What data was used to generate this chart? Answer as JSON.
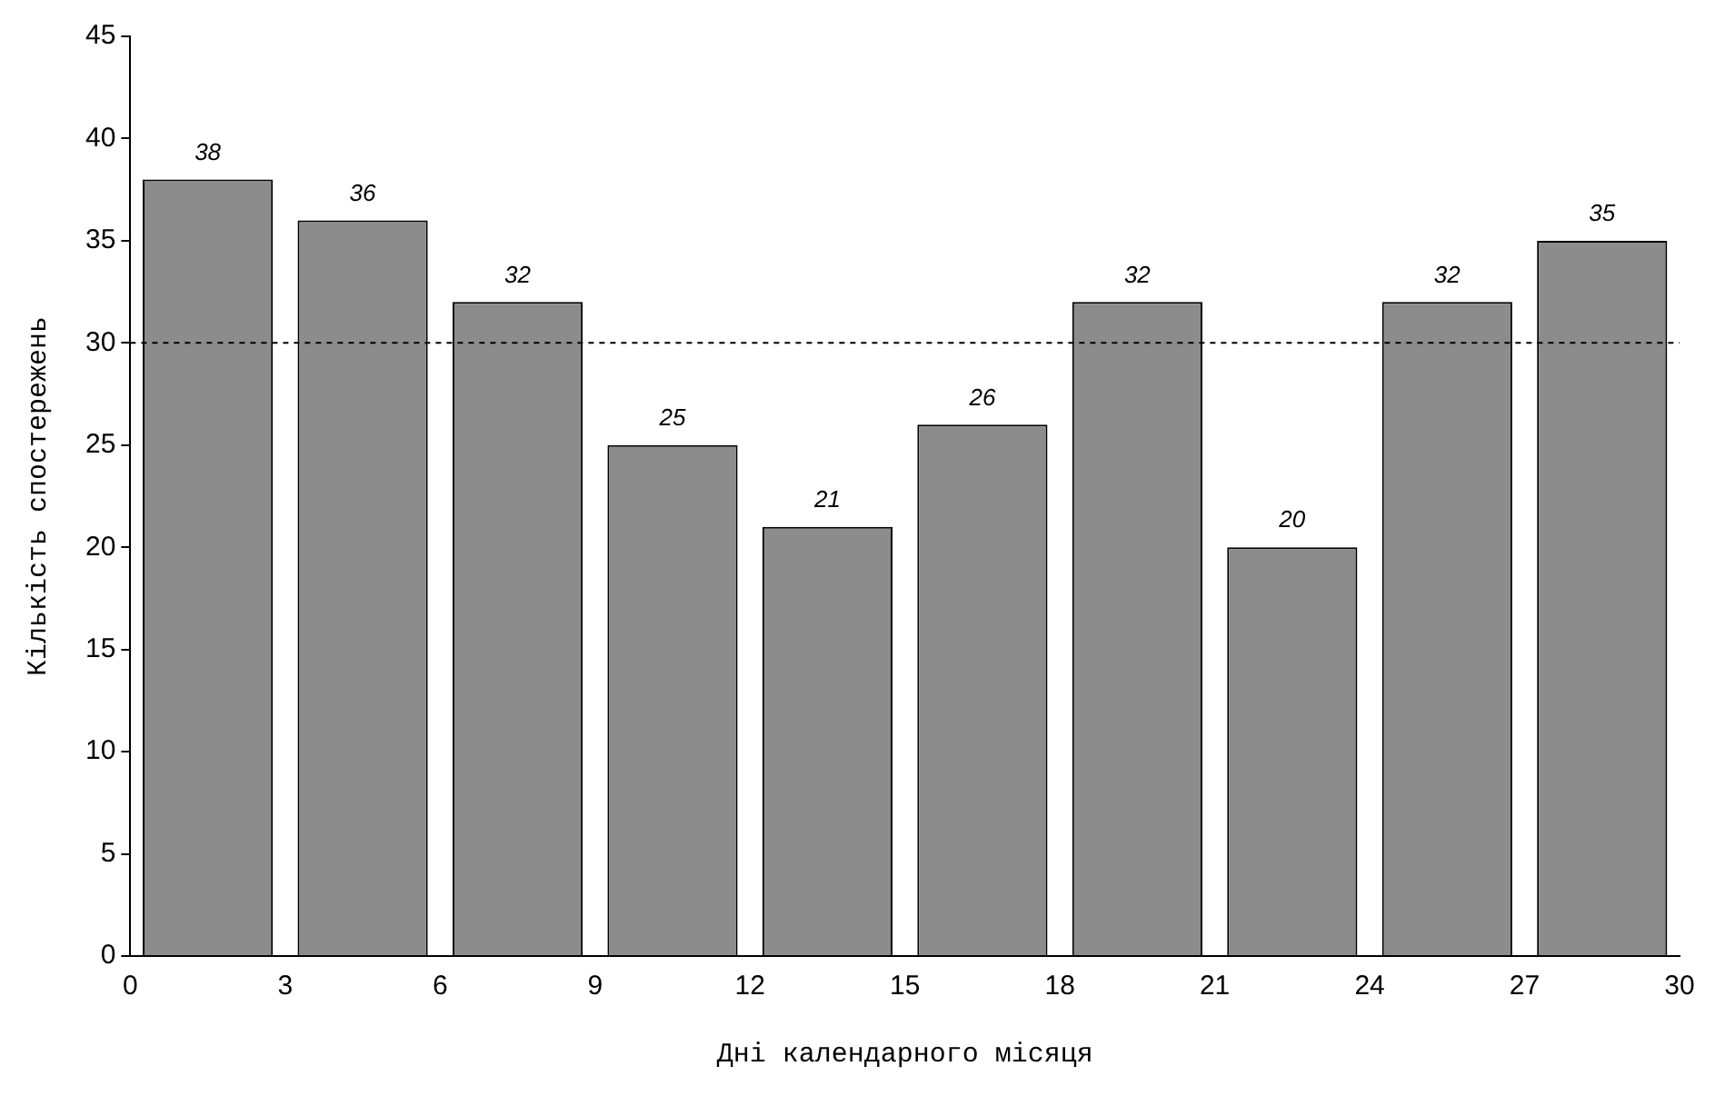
{
  "chart_data": {
    "type": "bar",
    "xlabel": "Дні календарного місяця",
    "ylabel": "Кількість спостережень",
    "x": [
      1.5,
      4.5,
      7.5,
      10.5,
      13.5,
      16.5,
      19.5,
      22.5,
      25.5,
      28.5
    ],
    "values": [
      38,
      36,
      32,
      25,
      21,
      26,
      32,
      20,
      32,
      35
    ],
    "color": "#8c8c8c",
    "xlim": [
      0,
      30
    ],
    "xticks": [
      0,
      3,
      6,
      9,
      12,
      15,
      18,
      21,
      24,
      27,
      30
    ],
    "ylim": [
      0,
      45
    ],
    "yticks": [
      0,
      5,
      10,
      15,
      20,
      25,
      30,
      35,
      40,
      45
    ],
    "grid": false,
    "legend": false,
    "data_labels": true,
    "ref_lines": [
      {
        "axis": "y",
        "value": 30,
        "color": "#000000",
        "line_style": "dashed"
      }
    ]
  }
}
